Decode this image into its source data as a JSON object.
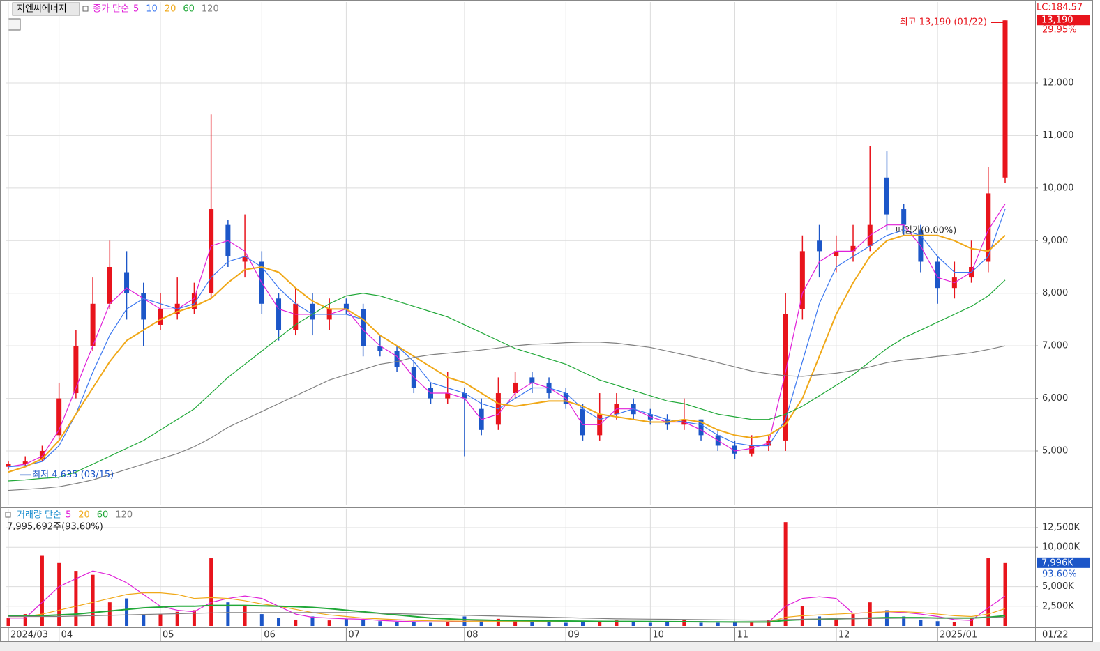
{
  "stock_name": "지엔씨에너지",
  "lc_label": "LC:184.57",
  "chart_data": [
    {
      "type": "candlestick",
      "legend_title": "종가 단순",
      "price_tag": "13,190",
      "change_label": "29.95%",
      "max_annotation": "최고 13,190 (01/22)",
      "min_annotation": "최저 4,635 (03/15)",
      "cost_annotation": "매입가(0.00%)",
      "up_color": "#e8141c",
      "down_color": "#1c56c8",
      "open": [
        4700,
        4750,
        4850,
        5300,
        6100,
        7000,
        7800,
        8400,
        8000,
        7400,
        7600,
        7700,
        8000,
        9300,
        8600,
        8600,
        7900,
        7300,
        7800,
        7500,
        7800,
        7700,
        7000,
        6900,
        6600,
        6200,
        6000,
        6100,
        5800,
        5500,
        6100,
        6400,
        6300,
        6100,
        5800,
        5300,
        5700,
        5900,
        5700,
        5600,
        5500,
        5600,
        5300,
        5100,
        4950,
        5100,
        5200,
        7700,
        9000,
        8700,
        8800,
        8900,
        10200,
        9600,
        9200,
        8600,
        8100,
        8300,
        8600,
        10200
      ],
      "high": [
        4800,
        4900,
        5100,
        6300,
        7300,
        8300,
        9000,
        8800,
        8200,
        8000,
        8300,
        8200,
        11400,
        9400,
        9500,
        8800,
        8000,
        8100,
        8000,
        7900,
        7900,
        7800,
        7200,
        7000,
        6700,
        6300,
        6500,
        6200,
        6000,
        6400,
        6500,
        6500,
        6400,
        6200,
        5900,
        6100,
        6100,
        6000,
        5800,
        5700,
        6000,
        5600,
        5400,
        5200,
        5300,
        5300,
        8000,
        9100,
        9300,
        9100,
        9300,
        10800,
        10700,
        9700,
        9300,
        8700,
        8600,
        9000,
        10400,
        13190
      ],
      "low": [
        4650,
        4700,
        4800,
        5200,
        6000,
        6900,
        7700,
        7500,
        7000,
        7300,
        7500,
        7600,
        7900,
        8500,
        8300,
        7600,
        7100,
        7200,
        7200,
        7300,
        7600,
        6800,
        6800,
        6500,
        6100,
        5900,
        5900,
        4900,
        5300,
        5400,
        6000,
        6100,
        6000,
        5800,
        5200,
        5200,
        5600,
        5600,
        5500,
        5400,
        5400,
        5200,
        5000,
        4850,
        4900,
        5000,
        5000,
        7500,
        8300,
        8400,
        8600,
        8800,
        9200,
        9100,
        8400,
        7800,
        7900,
        8200,
        8400,
        10100
      ],
      "close": [
        4750,
        4800,
        5000,
        6000,
        7000,
        7800,
        8500,
        8000,
        7500,
        7700,
        7800,
        8000,
        9600,
        8700,
        8700,
        7800,
        7300,
        7800,
        7500,
        7700,
        7700,
        7000,
        6900,
        6600,
        6200,
        6000,
        6100,
        6000,
        5400,
        6100,
        6300,
        6300,
        6100,
        5900,
        5300,
        5700,
        5900,
        5700,
        5600,
        5500,
        5600,
        5300,
        5100,
        4950,
        5100,
        5200,
        7600,
        8800,
        8800,
        8800,
        8900,
        9300,
        9500,
        9300,
        8600,
        8100,
        8300,
        8500,
        9900,
        13190
      ],
      "series": [
        {
          "name": "5",
          "color": "#e020d8",
          "values": [
            4700,
            4750,
            4900,
            5400,
            6200,
            7000,
            7800,
            8100,
            7900,
            7700,
            7700,
            7900,
            8900,
            9000,
            8800,
            8200,
            7700,
            7600,
            7600,
            7600,
            7700,
            7300,
            7000,
            6800,
            6400,
            6100,
            6100,
            6000,
            5600,
            5700,
            6100,
            6300,
            6200,
            6000,
            5500,
            5500,
            5800,
            5800,
            5650,
            5550,
            5550,
            5400,
            5200,
            5000,
            5050,
            5150,
            6500,
            8000,
            8600,
            8800,
            8800,
            9100,
            9300,
            9300,
            8900,
            8300,
            8200,
            8400,
            9200,
            9700
          ]
        },
        {
          "name": "10",
          "color": "#3c78f0",
          "values": [
            4700,
            4720,
            4800,
            5100,
            5700,
            6500,
            7200,
            7700,
            7900,
            7800,
            7700,
            7800,
            8300,
            8600,
            8700,
            8500,
            8100,
            7800,
            7600,
            7600,
            7600,
            7500,
            7200,
            7000,
            6700,
            6300,
            6200,
            6100,
            5900,
            5800,
            6000,
            6200,
            6200,
            6100,
            5800,
            5600,
            5700,
            5800,
            5700,
            5600,
            5550,
            5500,
            5300,
            5150,
            5100,
            5100,
            5600,
            6700,
            7800,
            8500,
            8700,
            8900,
            9100,
            9200,
            9100,
            8700,
            8400,
            8400,
            8700,
            9600
          ]
        },
        {
          "name": "20",
          "color": "#f0a818",
          "values": [
            4600,
            4700,
            4850,
            5200,
            5700,
            6200,
            6700,
            7100,
            7300,
            7500,
            7650,
            7750,
            7900,
            8200,
            8450,
            8500,
            8400,
            8100,
            7850,
            7700,
            7700,
            7500,
            7200,
            7000,
            6800,
            6600,
            6400,
            6300,
            6100,
            5900,
            5850,
            5900,
            5950,
            5950,
            5850,
            5700,
            5650,
            5600,
            5550,
            5550,
            5600,
            5550,
            5400,
            5300,
            5250,
            5300,
            5500,
            6000,
            6800,
            7600,
            8200,
            8700,
            9000,
            9100,
            9100,
            9100,
            9000,
            8850,
            8800,
            9100
          ]
        },
        {
          "name": "60",
          "color": "#20a838",
          "values": [
            4430,
            4450,
            4480,
            4500,
            4600,
            4750,
            4900,
            5050,
            5200,
            5400,
            5600,
            5800,
            6100,
            6400,
            6650,
            6900,
            7150,
            7400,
            7600,
            7800,
            7950,
            8000,
            7950,
            7850,
            7750,
            7650,
            7550,
            7400,
            7250,
            7100,
            6950,
            6850,
            6750,
            6650,
            6500,
            6350,
            6250,
            6150,
            6050,
            5950,
            5900,
            5800,
            5700,
            5650,
            5600,
            5600,
            5700,
            5850,
            6050,
            6250,
            6450,
            6700,
            6950,
            7150,
            7300,
            7450,
            7600,
            7750,
            7950,
            8250
          ]
        },
        {
          "name": "120",
          "color": "#808080",
          "values": [
            4250,
            4270,
            4290,
            4320,
            4380,
            4450,
            4550,
            4650,
            4750,
            4850,
            4950,
            5080,
            5250,
            5450,
            5600,
            5750,
            5900,
            6050,
            6200,
            6350,
            6450,
            6550,
            6650,
            6700,
            6780,
            6830,
            6860,
            6890,
            6920,
            6960,
            7000,
            7030,
            7040,
            7060,
            7070,
            7070,
            7050,
            7010,
            6970,
            6900,
            6830,
            6760,
            6680,
            6600,
            6520,
            6470,
            6430,
            6420,
            6450,
            6480,
            6530,
            6600,
            6680,
            6730,
            6760,
            6800,
            6830,
            6870,
            6930,
            7000
          ]
        }
      ],
      "ylim": [
        3966,
        13538
      ],
      "yticks": [
        {
          "value": 5000,
          "label": "5,000"
        },
        {
          "value": 6000,
          "label": "6,000"
        },
        {
          "value": 7000,
          "label": "7,000"
        },
        {
          "value": 8000,
          "label": "8,000"
        },
        {
          "value": 9000,
          "label": "9,000"
        },
        {
          "value": 10000,
          "label": "10,000"
        },
        {
          "value": 11000,
          "label": "11,000"
        },
        {
          "value": 12000,
          "label": "12,000"
        }
      ],
      "grid": true
    },
    {
      "type": "bar",
      "legend_title": "거래량 단순",
      "volume_label": "7,995,692주(93.60%)",
      "change_label": "93.60%",
      "categories": [
        "2024/03",
        null,
        null,
        "04",
        null,
        null,
        null,
        null,
        null,
        "05",
        null,
        null,
        null,
        null,
        null,
        "06",
        null,
        null,
        null,
        null,
        "07",
        null,
        null,
        null,
        null,
        null,
        null,
        "08",
        null,
        null,
        null,
        null,
        null,
        "09",
        null,
        null,
        null,
        null,
        "10",
        null,
        null,
        null,
        null,
        "11",
        null,
        null,
        null,
        null,
        null,
        "12",
        null,
        null,
        null,
        null,
        null,
        "2025/01",
        null,
        null,
        null,
        null
      ],
      "last_date": "01/22",
      "values": [
        1000,
        1500,
        9000,
        8000,
        7000,
        6500,
        3000,
        3500,
        1500,
        1500,
        1800,
        2000,
        8600,
        3000,
        2500,
        1500,
        1000,
        800,
        1200,
        700,
        900,
        800,
        600,
        500,
        500,
        400,
        500,
        1200,
        600,
        900,
        700,
        600,
        500,
        400,
        600,
        500,
        700,
        500,
        400,
        500,
        800,
        400,
        400,
        500,
        400,
        700,
        13200,
        2500,
        1200,
        1000,
        1500,
        3000,
        2000,
        1200,
        800,
        600,
        500,
        1000,
        8600,
        7996
      ],
      "value_labels": [
        null,
        null,
        null,
        null,
        null,
        null,
        null,
        null,
        null,
        null,
        null,
        null,
        null,
        null,
        null,
        null,
        null,
        null,
        null,
        null,
        null,
        null,
        null,
        null,
        null,
        null,
        null,
        null,
        null,
        null,
        null,
        null,
        null,
        null,
        null,
        null,
        null,
        null,
        null,
        null,
        null,
        null,
        null,
        null,
        null,
        null,
        null,
        null,
        null,
        null,
        null,
        null,
        null,
        null,
        null,
        null,
        null,
        null,
        null,
        "7,996K"
      ],
      "series": [
        {
          "name": "5",
          "color": "#e020d8",
          "values": [
            1000,
            1000,
            3000,
            5000,
            6000,
            7000,
            6500,
            5500,
            4000,
            2500,
            2000,
            1800,
            3000,
            3500,
            3800,
            3500,
            2500,
            1500,
            1100,
            1000,
            900,
            850,
            700,
            600,
            550,
            500,
            500,
            600,
            650,
            700,
            750,
            700,
            600,
            550,
            550,
            520,
            550,
            550,
            550,
            520,
            560,
            550,
            500,
            480,
            460,
            480,
            2500,
            3500,
            3700,
            3500,
            1600,
            1700,
            1800,
            1700,
            1500,
            1200,
            800,
            700,
            2300,
            3800
          ]
        },
        {
          "name": "20",
          "color": "#f0a818",
          "values": [
            1200,
            1200,
            1500,
            2000,
            2500,
            3000,
            3500,
            4000,
            4200,
            4200,
            4000,
            3500,
            3600,
            3500,
            3200,
            2800,
            2500,
            2100,
            1700,
            1400,
            1200,
            1000,
            900,
            800,
            700,
            650,
            620,
            600,
            600,
            600,
            600,
            580,
            580,
            570,
            560,
            550,
            550,
            540,
            530,
            520,
            520,
            510,
            500,
            490,
            480,
            500,
            1100,
            1300,
            1400,
            1500,
            1600,
            1700,
            1800,
            1800,
            1700,
            1500,
            1300,
            1200,
            1500,
            2200
          ]
        },
        {
          "name": "60",
          "color": "#20a838",
          "values": [
            1300,
            1300,
            1300,
            1400,
            1500,
            1700,
            1900,
            2100,
            2300,
            2400,
            2500,
            2500,
            2600,
            2600,
            2600,
            2550,
            2500,
            2450,
            2350,
            2200,
            2000,
            1800,
            1600,
            1400,
            1200,
            1000,
            900,
            800,
            750,
            700,
            680,
            660,
            640,
            620,
            600,
            580,
            570,
            560,
            550,
            540,
            530,
            520,
            510,
            500,
            500,
            500,
            700,
            800,
            850,
            900,
            950,
            1000,
            1050,
            1050,
            1050,
            1000,
            1000,
            1000,
            1100,
            1300
          ]
        },
        {
          "name": "120",
          "color": "#808080",
          "values": [
            1200,
            1200,
            1200,
            1200,
            1250,
            1300,
            1350,
            1400,
            1450,
            1500,
            1550,
            1600,
            1650,
            1700,
            1700,
            1700,
            1700,
            1700,
            1700,
            1700,
            1700,
            1650,
            1600,
            1550,
            1500,
            1450,
            1400,
            1350,
            1300,
            1250,
            1200,
            1150,
            1100,
            1050,
            1000,
            950,
            900,
            880,
            860,
            840,
            820,
            800,
            780,
            760,
            740,
            720,
            800,
            850,
            880,
            900,
            920,
            940,
            960,
            980,
            990,
            1000,
            1000,
            1010,
            1050,
            1100
          ]
        }
      ],
      "ylim": [
        0,
        14900
      ],
      "yticks": [
        {
          "value": 2500,
          "label": "2,500K"
        },
        {
          "value": 5000,
          "label": "5,000K"
        },
        {
          "value": 10000,
          "label": "10,000K"
        },
        {
          "value": 12500,
          "label": "12,500K"
        }
      ],
      "grid": true
    }
  ]
}
